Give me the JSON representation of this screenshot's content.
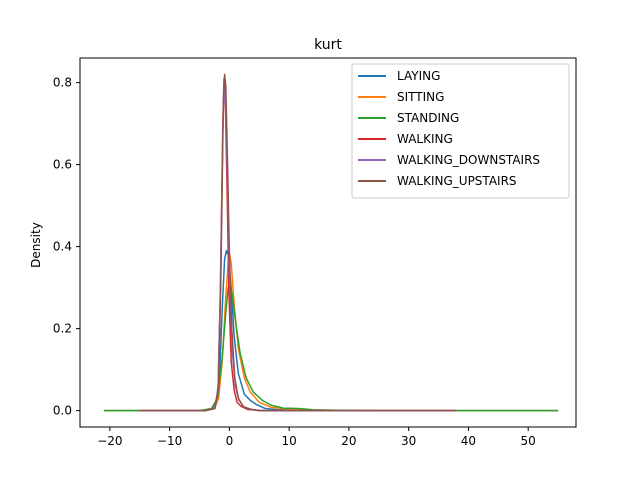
{
  "chart_data": {
    "type": "line",
    "title": "kurt",
    "xlabel": "",
    "ylabel": "Density",
    "xlim": [
      -25,
      58
    ],
    "ylim": [
      -0.04,
      0.86
    ],
    "xticks": [
      -20,
      -10,
      0,
      10,
      20,
      30,
      40,
      50
    ],
    "yticks": [
      0.0,
      0.2,
      0.4,
      0.6,
      0.8
    ],
    "grid": false,
    "legend_position": "top-right",
    "series": [
      {
        "name": "LAYING",
        "color": "#1f77b4",
        "points": [
          [
            -21,
            0
          ],
          [
            -5,
            0
          ],
          [
            -3,
            0.003
          ],
          [
            -2.2,
            0.02
          ],
          [
            -1.6,
            0.1
          ],
          [
            -1.2,
            0.25
          ],
          [
            -0.8,
            0.37
          ],
          [
            -0.5,
            0.39
          ],
          [
            -0.2,
            0.38
          ],
          [
            0.3,
            0.3
          ],
          [
            0.8,
            0.18
          ],
          [
            1.5,
            0.09
          ],
          [
            2.5,
            0.04
          ],
          [
            3.5,
            0.025
          ],
          [
            4.5,
            0.015
          ],
          [
            6,
            0.005
          ],
          [
            8,
            0.002
          ],
          [
            12,
            0
          ],
          [
            55,
            0
          ]
        ]
      },
      {
        "name": "SITTING",
        "color": "#ff7f0e",
        "points": [
          [
            -21,
            0
          ],
          [
            -4,
            0
          ],
          [
            -2.5,
            0.005
          ],
          [
            -1.8,
            0.03
          ],
          [
            -1.2,
            0.12
          ],
          [
            -0.6,
            0.28
          ],
          [
            -0.2,
            0.36
          ],
          [
            0,
            0.385
          ],
          [
            0.3,
            0.36
          ],
          [
            0.8,
            0.26
          ],
          [
            1.5,
            0.15
          ],
          [
            2.5,
            0.08
          ],
          [
            3.5,
            0.045
          ],
          [
            5,
            0.02
          ],
          [
            7,
            0.008
          ],
          [
            10,
            0.003
          ],
          [
            14,
            0.001
          ],
          [
            20,
            0
          ],
          [
            55,
            0
          ]
        ]
      },
      {
        "name": "STANDING",
        "color": "#2ca02c",
        "points": [
          [
            -21,
            0
          ],
          [
            -5,
            0
          ],
          [
            -3,
            0.005
          ],
          [
            -2,
            0.03
          ],
          [
            -1.2,
            0.13
          ],
          [
            -0.6,
            0.24
          ],
          [
            -0.2,
            0.3
          ],
          [
            0.1,
            0.31
          ],
          [
            0.5,
            0.28
          ],
          [
            1,
            0.22
          ],
          [
            1.8,
            0.14
          ],
          [
            2.8,
            0.08
          ],
          [
            4,
            0.045
          ],
          [
            5.5,
            0.025
          ],
          [
            7,
            0.013
          ],
          [
            9,
            0.006
          ],
          [
            11.5,
            0.005
          ],
          [
            14,
            0.002
          ],
          [
            18,
            0.001
          ],
          [
            25,
            0
          ],
          [
            55,
            0
          ]
        ]
      },
      {
        "name": "WALKING",
        "color": "#d62728",
        "points": [
          [
            -15,
            0
          ],
          [
            -4,
            0
          ],
          [
            -2.5,
            0.005
          ],
          [
            -1.9,
            0.05
          ],
          [
            -1.5,
            0.3
          ],
          [
            -1.1,
            0.7
          ],
          [
            -0.9,
            0.81
          ],
          [
            -0.7,
            0.77
          ],
          [
            -0.4,
            0.55
          ],
          [
            -0.1,
            0.3
          ],
          [
            0.3,
            0.12
          ],
          [
            0.8,
            0.05
          ],
          [
            1.3,
            0.02
          ],
          [
            2,
            0.01
          ],
          [
            3,
            0.003
          ],
          [
            5,
            0
          ],
          [
            38,
            0
          ]
        ]
      },
      {
        "name": "WALKING_DOWNSTAIRS",
        "color": "#9467bd",
        "points": [
          [
            -15,
            0
          ],
          [
            -4,
            0
          ],
          [
            -2.5,
            0.005
          ],
          [
            -1.9,
            0.05
          ],
          [
            -1.5,
            0.3
          ],
          [
            -1.1,
            0.68
          ],
          [
            -0.9,
            0.79
          ],
          [
            -0.6,
            0.74
          ],
          [
            -0.3,
            0.55
          ],
          [
            0,
            0.33
          ],
          [
            0.5,
            0.14
          ],
          [
            1,
            0.06
          ],
          [
            1.6,
            0.025
          ],
          [
            2.5,
            0.008
          ],
          [
            4,
            0.002
          ],
          [
            6,
            0
          ],
          [
            38,
            0
          ]
        ]
      },
      {
        "name": "WALKING_UPSTAIRS",
        "color": "#8c564b",
        "points": [
          [
            -15,
            0
          ],
          [
            -4,
            0
          ],
          [
            -2.4,
            0.005
          ],
          [
            -1.8,
            0.06
          ],
          [
            -1.4,
            0.35
          ],
          [
            -1.0,
            0.76
          ],
          [
            -0.8,
            0.82
          ],
          [
            -0.6,
            0.79
          ],
          [
            -0.3,
            0.6
          ],
          [
            0,
            0.38
          ],
          [
            0.4,
            0.2
          ],
          [
            0.9,
            0.08
          ],
          [
            1.5,
            0.03
          ],
          [
            2.3,
            0.01
          ],
          [
            3.5,
            0.003
          ],
          [
            5,
            0
          ],
          [
            38,
            0
          ]
        ]
      }
    ]
  }
}
